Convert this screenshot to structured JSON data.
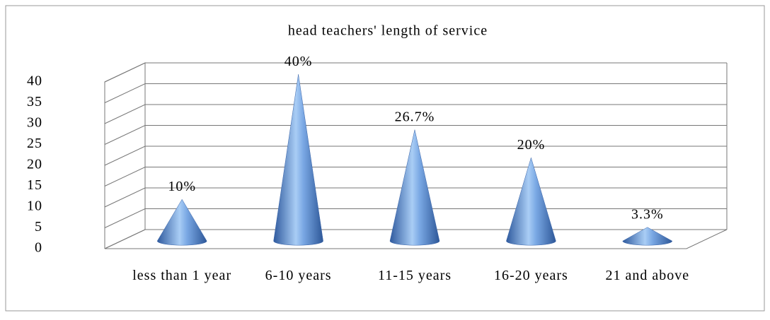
{
  "chart_data": {
    "type": "cone",
    "title": "head teachers' length of service",
    "categories": [
      "less than 1 year",
      "6-10 years",
      "11-15 years",
      "16-20 years",
      "21 and above"
    ],
    "values": [
      10,
      40,
      26.7,
      20,
      3.3
    ],
    "value_labels": [
      "10%",
      "40%",
      "26.7%",
      "20%",
      "3.3%"
    ],
    "color": "#4a7cc4",
    "ylim": [
      0,
      40
    ],
    "yticks": [
      0,
      5,
      10,
      15,
      20,
      25,
      30,
      35,
      40
    ],
    "grid": true
  }
}
